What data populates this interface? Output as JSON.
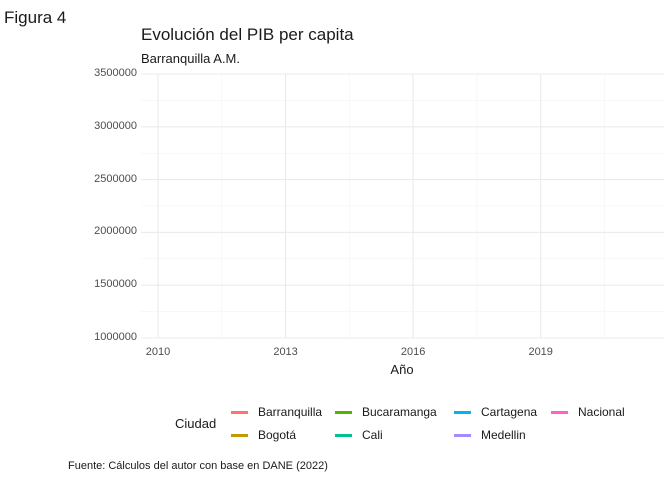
{
  "figure_label": "Figura 4",
  "caption": "Fuente: Cálculos del autor con base en DANE (2022)",
  "chart_data": {
    "type": "line",
    "title": "Evolución del PIB per capita",
    "subtitle": "Barranquilla A.M.",
    "xlabel": "Año",
    "ylabel": "",
    "xlim": [
      2009.6,
      2021.9
    ],
    "ylim": [
      1000000,
      3500000
    ],
    "x_ticks": [
      2010,
      2013,
      2016,
      2019
    ],
    "y_ticks": [
      1000000,
      1500000,
      2000000,
      2500000,
      3000000,
      3500000
    ],
    "y_tick_labels": [
      "1000000",
      "1500000",
      "2000000",
      "2500000",
      "3000000",
      "3500000"
    ],
    "x_tick_labels": [
      "2010",
      "2013",
      "2016",
      "2019"
    ],
    "grid": true,
    "legend_title": "Ciudad",
    "legend_position": "bottom",
    "series": [
      {
        "name": "Barranquilla",
        "color": "#F8766D",
        "values": []
      },
      {
        "name": "Bogotá",
        "color": "#C49A00",
        "values": []
      },
      {
        "name": "Bucaramanga",
        "color": "#53B400",
        "values": []
      },
      {
        "name": "Cali",
        "color": "#00C094",
        "values": []
      },
      {
        "name": "Cartagena",
        "color": "#00B6EB",
        "values": []
      },
      {
        "name": "Medellin",
        "color": "#A58AFF",
        "values": []
      },
      {
        "name": "Nacional",
        "color": "#FB61D7",
        "values": []
      }
    ]
  }
}
